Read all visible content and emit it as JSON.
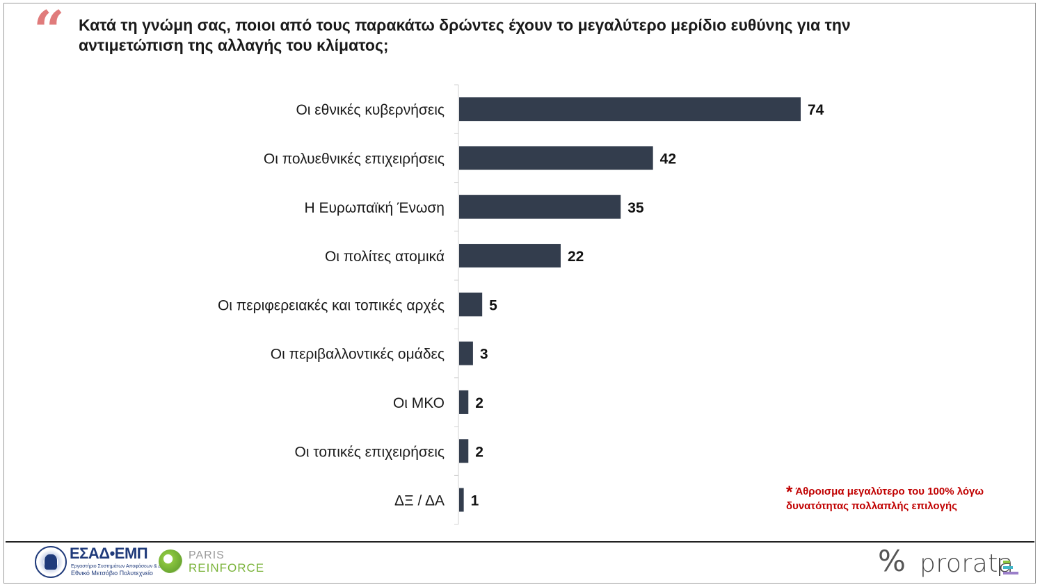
{
  "header": {
    "quote_glyph": "“",
    "question": "Κατά τη γνώμη σας, ποιοι από τους παρακάτω δρώντες έχουν το μεγαλύτερο μερίδιο ευθύνης για την αντιμετώπιση της αλλαγής του κλίματος;"
  },
  "chart_data": {
    "type": "bar",
    "orientation": "horizontal",
    "categories": [
      "Οι εθνικές κυβερνήσεις",
      "Οι πολυεθνικές επιχειρήσεις",
      "Η Ευρωπαϊκή Ένωση",
      "Οι πολίτες ατομικά",
      "Οι περιφερειακές και τοπικές αρχές",
      "Οι περιβαλλοντικές ομάδες",
      "Οι ΜΚΟ",
      "Οι τοπικές επιχειρήσεις",
      "ΔΞ / ΔΑ"
    ],
    "values": [
      74,
      42,
      35,
      22,
      5,
      3,
      2,
      2,
      1
    ],
    "data_labels": true,
    "bar_color": "#333d4d",
    "grid": false,
    "legend": "none"
  },
  "note": {
    "star": "*",
    "text": "Άθροισμα μεγαλύτερο του 100% λόγω δυνατότητας πολλαπλής επιλογής",
    "color": "#c00000"
  },
  "footer": {
    "esad_name": "ΕΣΑΔ•ΕΜΠ",
    "esad_sub1": "Εργαστήριο Συστημάτων Αποφάσεων & Διοίκησης",
    "esad_sub2": "Εθνικό Μετσόβιο Πολυτεχνείο",
    "paris_line1": "PARIS",
    "paris_line2": "REINFORCE",
    "prorata_symbol": "%",
    "prorata_name": "prorata"
  }
}
